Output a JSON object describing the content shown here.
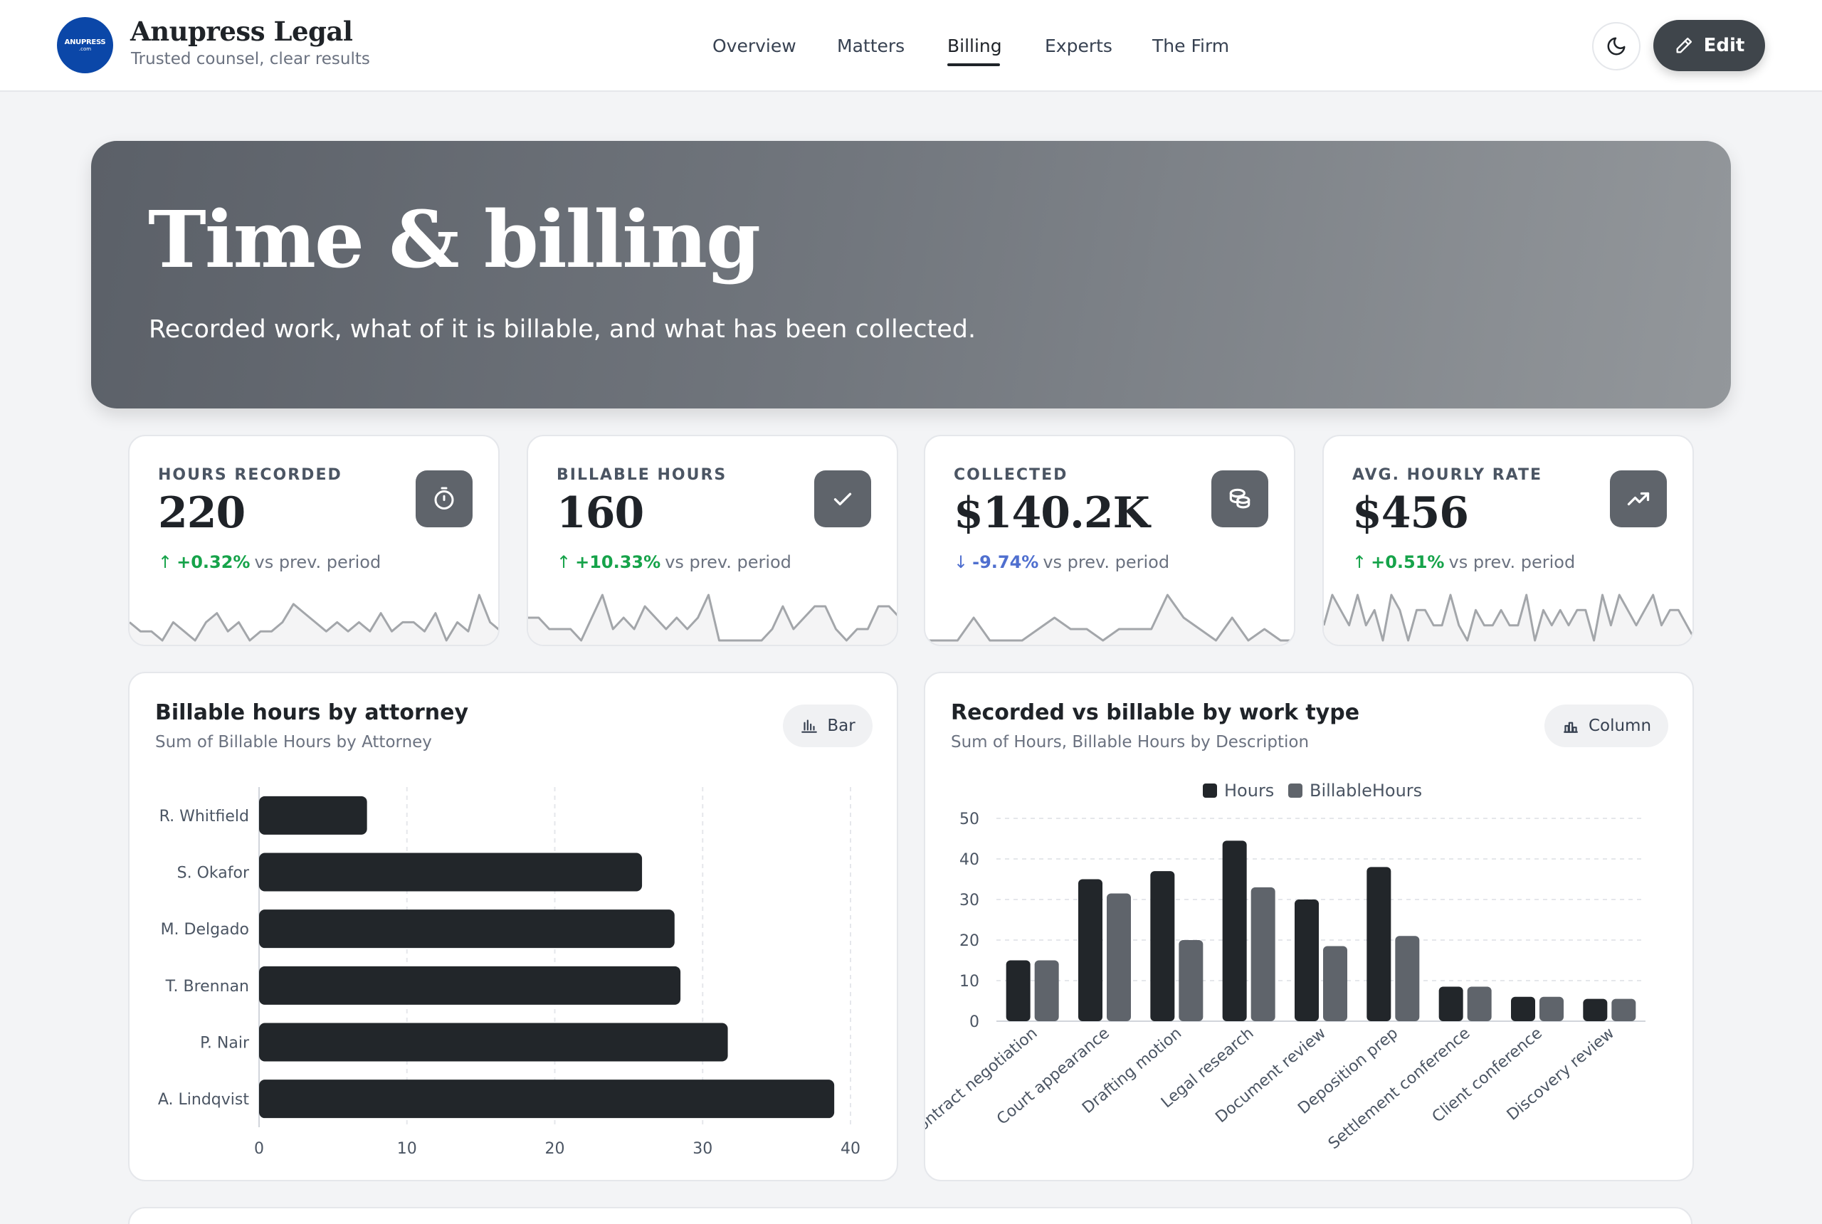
{
  "brand": {
    "logo_text": "ANUPRESS",
    "logo_sub": ".com",
    "name": "Anupress Legal",
    "tagline": "Trusted counsel, clear results"
  },
  "nav": {
    "items": [
      "Overview",
      "Matters",
      "Billing",
      "Experts",
      "The Firm"
    ],
    "active": "Billing"
  },
  "header_actions": {
    "theme_icon": "moon-icon",
    "edit_label": "Edit"
  },
  "hero": {
    "title": "Time & billing",
    "subtitle": "Recorded work, what of it is billable, and what has been collected."
  },
  "kpis": [
    {
      "label": "HOURS RECORDED",
      "value": "220",
      "delta": "+0.32%",
      "direction": "up",
      "suffix": "vs prev. period",
      "icon": "timer-icon",
      "trend": [
        3,
        2,
        2,
        1,
        3,
        2,
        1,
        3,
        4,
        2,
        3,
        1,
        2,
        2,
        3,
        5,
        4,
        3,
        2,
        3,
        2,
        3,
        2,
        4,
        2,
        3,
        3,
        2,
        4,
        1,
        3,
        2,
        6,
        3,
        2
      ]
    },
    {
      "label": "BILLABLE HOURS",
      "value": "160",
      "delta": "+10.33%",
      "direction": "up",
      "suffix": "vs prev. period",
      "icon": "check-icon",
      "trend": [
        3,
        3,
        2,
        2,
        2,
        1,
        3,
        5,
        2,
        3,
        2,
        4,
        3,
        2,
        3,
        2,
        3,
        5,
        1,
        1,
        1,
        1,
        1,
        2,
        4,
        2,
        3,
        4,
        4,
        2,
        1,
        2,
        2,
        4,
        4,
        3
      ]
    },
    {
      "label": "COLLECTED",
      "value": "$140.2K",
      "delta": "-9.74%",
      "direction": "down",
      "suffix": "vs prev. period",
      "icon": "coins-icon",
      "trend": [
        1,
        1,
        1,
        3,
        1,
        1,
        1,
        2,
        3,
        2,
        2,
        1,
        2,
        2,
        2,
        5,
        3,
        2,
        1,
        3,
        1,
        2,
        1,
        1
      ]
    },
    {
      "label": "AVG. HOURLY RATE",
      "value": "$456",
      "delta": "+0.51%",
      "direction": "up",
      "suffix": "vs prev. period",
      "icon": "trending-up-icon",
      "trend": [
        2,
        4,
        3,
        2,
        4,
        2,
        3,
        1,
        4,
        3,
        1,
        3,
        3,
        2,
        2,
        4,
        2,
        1,
        3,
        2,
        2,
        3,
        2,
        2,
        4,
        1,
        3,
        2,
        3,
        2,
        3,
        3,
        1,
        4,
        2,
        4,
        3,
        2,
        3,
        4,
        2,
        3,
        3,
        2,
        1
      ]
    }
  ],
  "colors": {
    "accent_dark": "#22262a",
    "accent_grey": "#5f646b",
    "up": "#16a34a",
    "down": "#4f6fcf"
  },
  "chart_left": {
    "title": "Billable hours by attorney",
    "subtitle": "Sum of Billable Hours by Attorney",
    "toggle_label": "Bar",
    "toggle_icon": "bar-chart-icon"
  },
  "chart_right": {
    "title": "Recorded vs billable by work type",
    "subtitle": "Sum of Hours, Billable Hours by Description",
    "toggle_label": "Column",
    "toggle_icon": "column-chart-icon"
  },
  "chart_data": [
    {
      "type": "bar",
      "orientation": "horizontal",
      "categories": [
        "R. Whitfield",
        "S. Okafor",
        "M. Delgado",
        "T. Brennan",
        "P. Nair",
        "A. Lindqvist"
      ],
      "values": [
        7.3,
        25.9,
        28.1,
        28.5,
        31.7,
        38.9
      ],
      "xlim": [
        0,
        40
      ],
      "xticks": [
        0,
        10,
        20,
        30,
        40
      ],
      "grid": true
    },
    {
      "type": "bar",
      "orientation": "vertical",
      "categories": [
        "Contract negotiation",
        "Court appearance",
        "Drafting motion",
        "Legal research",
        "Document review",
        "Deposition prep",
        "Settlement conference",
        "Client conference",
        "Discovery review"
      ],
      "series": [
        {
          "name": "Hours",
          "values": [
            15,
            35,
            37,
            44.5,
            30,
            38,
            8.5,
            6,
            5.5
          ]
        },
        {
          "name": "BillableHours",
          "values": [
            15,
            31.5,
            20,
            33,
            18.5,
            21,
            8.5,
            6,
            5.5
          ]
        }
      ],
      "ylim": [
        0,
        50
      ],
      "yticks": [
        0,
        10,
        20,
        30,
        40,
        50
      ],
      "legend": "top-center",
      "grid": true
    }
  ]
}
